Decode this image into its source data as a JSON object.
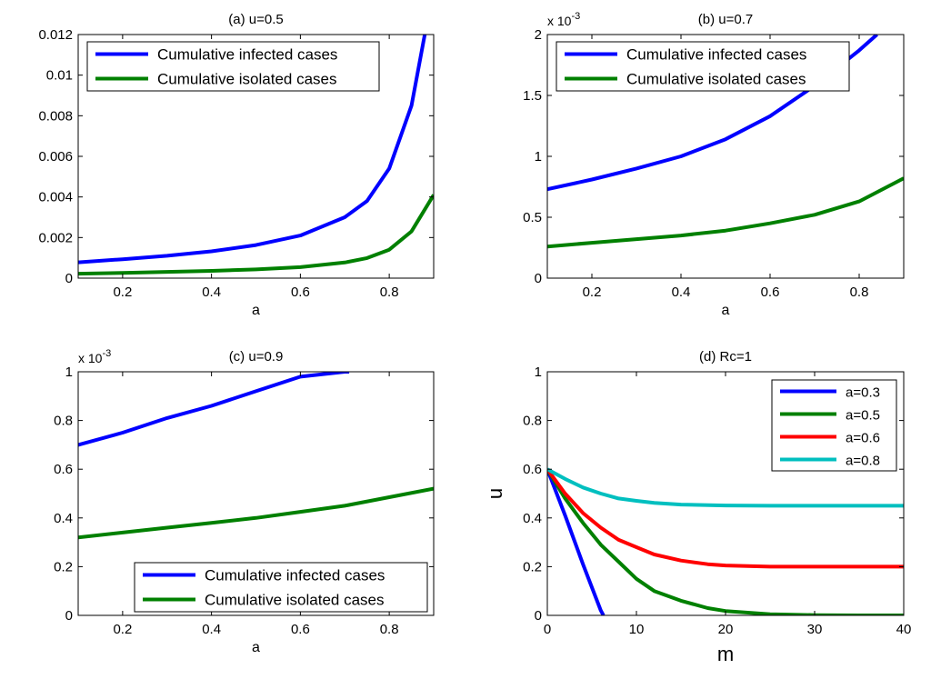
{
  "chart_data": [
    {
      "type": "line",
      "title": "(a) u=0.5",
      "xlabel": "a",
      "ylabel": "",
      "xlim": [
        0.1,
        0.9
      ],
      "ylim": [
        0,
        0.012
      ],
      "xticks": [
        0.2,
        0.4,
        0.6,
        0.8
      ],
      "yticks": [
        0,
        0.002,
        0.004,
        0.006,
        0.008,
        0.01,
        0.012
      ],
      "ytick_labels": [
        "0",
        "0.002",
        "0.004",
        "0.006",
        "0.008",
        "0.01",
        "0.012"
      ],
      "exponent_label": "",
      "legend_position": "top-left",
      "series": [
        {
          "name": "Cumulative infected cases",
          "color": "#0000ff",
          "x": [
            0.1,
            0.2,
            0.3,
            0.4,
            0.5,
            0.6,
            0.7,
            0.75,
            0.8,
            0.85,
            0.88
          ],
          "y": [
            0.00078,
            0.00093,
            0.0011,
            0.00132,
            0.00163,
            0.0021,
            0.003,
            0.0038,
            0.0054,
            0.0085,
            0.012
          ]
        },
        {
          "name": "Cumulative isolated cases",
          "color": "#008000",
          "x": [
            0.1,
            0.2,
            0.3,
            0.4,
            0.5,
            0.6,
            0.7,
            0.75,
            0.8,
            0.85,
            0.9
          ],
          "y": [
            0.00022,
            0.00026,
            0.00031,
            0.00036,
            0.00043,
            0.00054,
            0.00077,
            0.00099,
            0.0014,
            0.0023,
            0.0041
          ]
        }
      ]
    },
    {
      "type": "line",
      "title": "(b) u=0.7",
      "xlabel": "a",
      "ylabel": "",
      "xlim": [
        0.1,
        0.9
      ],
      "ylim": [
        0,
        2
      ],
      "xticks": [
        0.2,
        0.4,
        0.6,
        0.8
      ],
      "yticks": [
        0,
        0.5,
        1,
        1.5,
        2
      ],
      "ytick_labels": [
        "0",
        "0.5",
        "1",
        "1.5",
        "2"
      ],
      "exponent_label": "x 10",
      "exponent_power": "-3",
      "legend_position": "top",
      "series": [
        {
          "name": "Cumulative infected cases",
          "color": "#0000ff",
          "x": [
            0.1,
            0.2,
            0.3,
            0.4,
            0.5,
            0.6,
            0.7,
            0.8,
            0.84
          ],
          "y": [
            0.73,
            0.81,
            0.9,
            1.0,
            1.14,
            1.33,
            1.58,
            1.87,
            2.0
          ]
        },
        {
          "name": "Cumulative isolated cases",
          "color": "#008000",
          "x": [
            0.1,
            0.2,
            0.3,
            0.4,
            0.5,
            0.6,
            0.7,
            0.8,
            0.9
          ],
          "y": [
            0.26,
            0.29,
            0.32,
            0.35,
            0.39,
            0.45,
            0.52,
            0.63,
            0.82
          ]
        }
      ]
    },
    {
      "type": "line",
      "title": "(c) u=0.9",
      "xlabel": "a",
      "ylabel": "",
      "xlim": [
        0.1,
        0.9
      ],
      "ylim": [
        0,
        1
      ],
      "xticks": [
        0.2,
        0.4,
        0.6,
        0.8
      ],
      "yticks": [
        0,
        0.2,
        0.4,
        0.6,
        0.8,
        1
      ],
      "ytick_labels": [
        "0",
        "0.2",
        "0.4",
        "0.6",
        "0.8",
        "1"
      ],
      "exponent_label": "x 10",
      "exponent_power": "-3",
      "legend_position": "bottom-right",
      "series": [
        {
          "name": "Cumulative infected cases",
          "color": "#0000ff",
          "x": [
            0.1,
            0.2,
            0.3,
            0.4,
            0.5,
            0.6,
            0.7,
            0.71
          ],
          "y": [
            0.7,
            0.75,
            0.81,
            0.86,
            0.92,
            0.98,
            1.0,
            1.0
          ]
        },
        {
          "name": "Cumulative isolated cases",
          "color": "#008000",
          "x": [
            0.1,
            0.2,
            0.3,
            0.4,
            0.5,
            0.6,
            0.7,
            0.8,
            0.9
          ],
          "y": [
            0.32,
            0.34,
            0.36,
            0.38,
            0.4,
            0.425,
            0.45,
            0.485,
            0.52
          ]
        }
      ]
    },
    {
      "type": "line",
      "title": "(d) Rc=1",
      "xlabel": "m",
      "ylabel": "u",
      "xlim": [
        0,
        40
      ],
      "ylim": [
        0,
        1
      ],
      "xticks": [
        0,
        10,
        20,
        30,
        40
      ],
      "yticks": [
        0,
        0.2,
        0.4,
        0.6,
        0.8,
        1
      ],
      "ytick_labels": [
        "0",
        "0.2",
        "0.4",
        "0.6",
        "0.8",
        "1"
      ],
      "exponent_label": "",
      "legend_position": "top-right",
      "series": [
        {
          "name": "a=0.3",
          "color": "#0000ff",
          "x": [
            0,
            2,
            4,
            6,
            6.3
          ],
          "y": [
            0.6,
            0.41,
            0.21,
            0.02,
            0
          ]
        },
        {
          "name": "a=0.5",
          "color": "#008000",
          "x": [
            0,
            2,
            4,
            6,
            8,
            10,
            12,
            15,
            18,
            20,
            25,
            30,
            35,
            40
          ],
          "y": [
            0.6,
            0.48,
            0.38,
            0.29,
            0.22,
            0.15,
            0.1,
            0.06,
            0.03,
            0.018,
            0.005,
            0.001,
            0,
            0
          ]
        },
        {
          "name": "a=0.6",
          "color": "#ff0000",
          "x": [
            0,
            2,
            4,
            6,
            8,
            10,
            12,
            15,
            18,
            20,
            25,
            30,
            35,
            40
          ],
          "y": [
            0.6,
            0.5,
            0.42,
            0.36,
            0.31,
            0.28,
            0.25,
            0.225,
            0.21,
            0.205,
            0.2,
            0.2,
            0.2,
            0.2
          ]
        },
        {
          "name": "a=0.8",
          "color": "#00bfbf",
          "x": [
            0,
            2,
            4,
            6,
            8,
            10,
            12,
            15,
            20,
            25,
            30,
            40
          ],
          "y": [
            0.6,
            0.56,
            0.525,
            0.5,
            0.48,
            0.47,
            0.462,
            0.455,
            0.451,
            0.45,
            0.45,
            0.45
          ]
        }
      ]
    }
  ]
}
